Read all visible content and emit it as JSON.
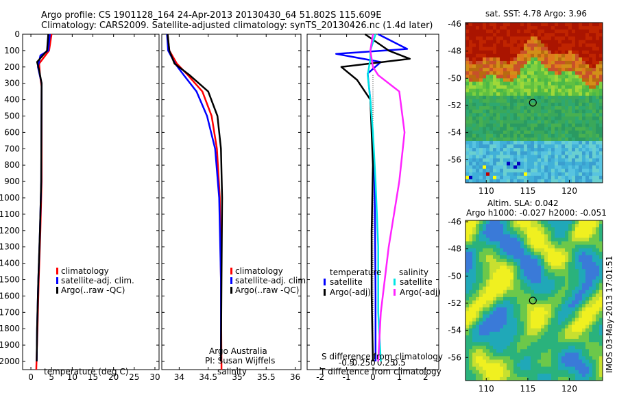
{
  "title_line1": "Argo profile: CS 1901128_164 24-Apr-2013 20130430_64 51.802S 115.609E",
  "title_line2": "Climatology: CARS2009. Satellite-adjusted climatology: synTS_20130426.nc (1.4d later)",
  "side_label": "IMOS 03-May-2013 17:01:51",
  "credit_line1": "Argo Australia",
  "credit_line2": "PI: Susan Wijffels",
  "colors": {
    "red": "#ff0000",
    "blue": "#0000ff",
    "black": "#000000",
    "cyan": "#00e5e5",
    "magenta": "#ff22ff"
  },
  "chart_data": [
    {
      "type": "line",
      "id": "temperature",
      "xlabel": "temperature (deg C)",
      "ylim": [
        0,
        2050
      ],
      "xlim": [
        -2,
        31
      ],
      "xticks": [
        0,
        5,
        10,
        15,
        20,
        25,
        30
      ],
      "yticks": [
        0,
        100,
        200,
        300,
        400,
        500,
        600,
        700,
        800,
        900,
        1000,
        1100,
        1200,
        1300,
        1400,
        1500,
        1600,
        1700,
        1800,
        1900,
        2000
      ],
      "legend": [
        "climatology",
        "satellite-adj. clim.",
        "Argo(..raw -QC)"
      ],
      "series": [
        {
          "name": "climatology",
          "color": "red",
          "x": [
            5.0,
            4.4,
            2.0,
            2.2,
            2.6,
            2.6,
            2.3,
            1.9,
            1.6,
            1.3
          ],
          "y": [
            0,
            100,
            180,
            250,
            320,
            900,
            1200,
            1500,
            1800,
            2050
          ]
        },
        {
          "name": "satellite-adj. clim.",
          "color": "blue",
          "x": [
            4.6,
            4.2,
            2.3,
            1.7,
            2.6,
            2.5,
            2.2,
            1.8,
            1.5,
            1.4
          ],
          "y": [
            0,
            100,
            130,
            200,
            300,
            900,
            1200,
            1500,
            1800,
            2000
          ]
        },
        {
          "name": "Argo(..raw -QC)",
          "color": "black",
          "x": [
            4.2,
            3.9,
            1.5,
            2.0,
            2.6,
            2.5,
            2.2,
            1.8,
            1.5,
            1.4
          ],
          "y": [
            0,
            100,
            170,
            220,
            300,
            900,
            1200,
            1500,
            1800,
            2000
          ]
        }
      ]
    },
    {
      "type": "line",
      "id": "salinity",
      "xlabel": "salinity",
      "ylim": [
        0,
        2050
      ],
      "xlim": [
        33.7,
        36.1
      ],
      "xticks": [
        34,
        34.5,
        35,
        35.5,
        36
      ],
      "xtick_labels": [
        "34",
        "34.5",
        "35",
        "35.5",
        "36"
      ],
      "legend": [
        "climatology",
        "satellite-adj. clim.",
        "Argo(..raw -QC)"
      ],
      "series": [
        {
          "name": "climatology",
          "color": "red",
          "x": [
            33.8,
            33.83,
            33.96,
            34.15,
            34.4,
            34.56,
            34.65,
            34.7,
            34.72,
            34.73
          ],
          "y": [
            0,
            100,
            180,
            250,
            350,
            500,
            700,
            1000,
            1500,
            2050
          ]
        },
        {
          "name": "satellite-adj. clim.",
          "color": "blue",
          "x": [
            33.79,
            33.81,
            33.93,
            34.08,
            34.3,
            34.48,
            34.62,
            34.69,
            34.72,
            34.72
          ],
          "y": [
            0,
            100,
            180,
            250,
            350,
            500,
            700,
            1000,
            1500,
            2000
          ]
        },
        {
          "name": "Argo(..raw -QC)",
          "color": "black",
          "x": [
            33.8,
            33.83,
            33.92,
            34.18,
            34.5,
            34.66,
            34.72,
            34.74,
            34.73,
            34.72
          ],
          "y": [
            0,
            100,
            180,
            250,
            350,
            500,
            700,
            1000,
            1500,
            2000
          ]
        }
      ]
    },
    {
      "type": "line",
      "id": "difference",
      "xlabel": "T difference from climatology",
      "top_xlabel": "S difference from climatology",
      "ylim": [
        0,
        2050
      ],
      "xlim": [
        -2.5,
        2.5
      ],
      "xticks": [
        -2,
        -1,
        0,
        1,
        2
      ],
      "top_xticks": [
        -0.5,
        -0.25,
        0,
        0.25,
        0.5
      ],
      "top_xtick_labels": [
        "-0.5",
        "-0.25",
        "0",
        "0.25",
        "0.5"
      ],
      "legend_titles": [
        "temperature",
        "salinity"
      ],
      "legend": [
        "satellite",
        "Argo(-adj)",
        "satellite",
        "Argo(-adj)"
      ],
      "series": [
        {
          "name": "satellite",
          "group": "temperature",
          "color": "blue",
          "x": [
            0.2,
            1.3,
            -1.4,
            0.3,
            -0.2,
            -0.1,
            0.05,
            0.08,
            0.1,
            0.1
          ],
          "y": [
            0,
            90,
            120,
            170,
            240,
            400,
            800,
            1200,
            1600,
            2000
          ]
        },
        {
          "name": "Argo(-adj)",
          "group": "temperature",
          "color": "black",
          "x": [
            -0.3,
            0.6,
            1.4,
            -1.2,
            -0.6,
            -0.1,
            0.0,
            -0.05,
            -0.05,
            0.0
          ],
          "y": [
            0,
            100,
            150,
            200,
            280,
            400,
            800,
            1200,
            1600,
            2000
          ]
        },
        {
          "name": "satellite",
          "group": "salinity",
          "color": "cyan",
          "x": [
            0.05,
            -0.05,
            -0.05,
            -0.1,
            -0.05,
            0.0,
            0.05,
            0.1,
            0.1,
            0.15
          ],
          "y": [
            0,
            100,
            150,
            250,
            400,
            600,
            900,
            1300,
            1700,
            2000
          ]
        },
        {
          "name": "Argo(-adj)",
          "group": "salinity",
          "color": "magenta",
          "x": [
            0.0,
            -0.05,
            0.0,
            0.1,
            0.5,
            0.6,
            0.5,
            0.3,
            0.15,
            0.1
          ],
          "y": [
            0,
            100,
            200,
            250,
            350,
            600,
            900,
            1300,
            1700,
            2000
          ]
        }
      ]
    },
    {
      "type": "heatmap",
      "id": "sst_map",
      "title": "sat. SST: 4.78  Argo: 3.96",
      "xticks": [
        110,
        115,
        120
      ],
      "yticks": [
        -46,
        -48,
        -50,
        -52,
        -54,
        -56
      ],
      "xlim": [
        107.5,
        124.0
      ],
      "ylim": [
        -57.7,
        -45.9
      ],
      "marker": {
        "lon": 115.609,
        "lat": -51.802
      }
    },
    {
      "type": "heatmap",
      "id": "sla_map",
      "title": "Altim. SLA: 0.042",
      "subtitle": "Argo h1000: -0.027 h2000: -0.051",
      "xticks": [
        110,
        115,
        120
      ],
      "yticks": [
        -46,
        -48,
        -50,
        -52,
        -54,
        -56
      ],
      "xlim": [
        107.5,
        124.0
      ],
      "ylim": [
        -57.7,
        -45.9
      ],
      "marker": {
        "lon": 115.609,
        "lat": -51.802
      }
    }
  ]
}
